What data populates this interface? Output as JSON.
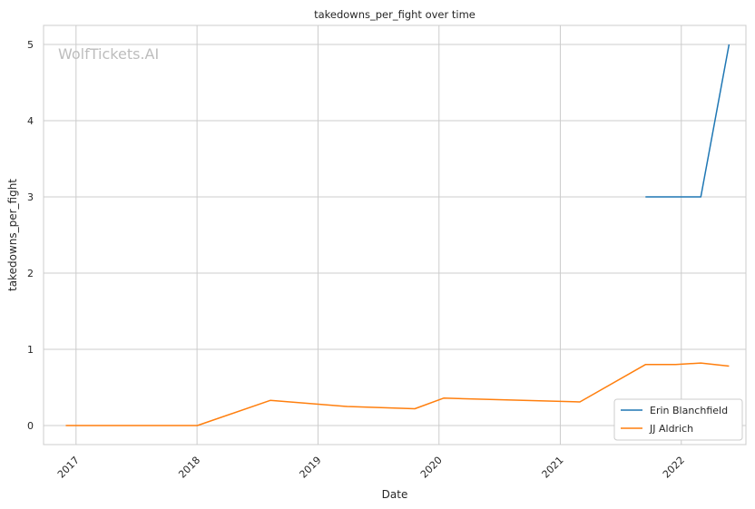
{
  "chart_data": {
    "type": "line",
    "title": "takedowns_per_fight over time",
    "xlabel": "Date",
    "ylabel": "takedowns_per_fight",
    "watermark": "WolfTickets.AI",
    "x_tick_labels": [
      "2017",
      "2018",
      "2019",
      "2020",
      "2021",
      "2022"
    ],
    "y_tick_labels": [
      "0",
      "1",
      "2",
      "3",
      "4",
      "5"
    ],
    "xlim": [
      "2016-09-25",
      "2022-07-15"
    ],
    "ylim": [
      -0.25,
      5.25
    ],
    "grid": true,
    "legend_position": "lower-right",
    "series": [
      {
        "name": "Erin Blanchfield",
        "color": "#1f77b4",
        "points": [
          {
            "x": "2021-09-15",
            "y": 3.0
          },
          {
            "x": "2022-03-01",
            "y": 3.0
          },
          {
            "x": "2022-05-25",
            "y": 5.0
          }
        ]
      },
      {
        "name": "JJ Aldrich",
        "color": "#ff7f0e",
        "points": [
          {
            "x": "2016-12-01",
            "y": 0.0
          },
          {
            "x": "2018-01-02",
            "y": 0.0
          },
          {
            "x": "2018-08-10",
            "y": 0.33
          },
          {
            "x": "2019-03-30",
            "y": 0.25
          },
          {
            "x": "2019-10-20",
            "y": 0.22
          },
          {
            "x": "2020-01-15",
            "y": 0.36
          },
          {
            "x": "2021-03-01",
            "y": 0.31
          },
          {
            "x": "2021-09-15",
            "y": 0.8
          },
          {
            "x": "2021-12-15",
            "y": 0.8
          },
          {
            "x": "2022-03-01",
            "y": 0.82
          },
          {
            "x": "2022-05-25",
            "y": 0.78
          }
        ]
      }
    ]
  }
}
